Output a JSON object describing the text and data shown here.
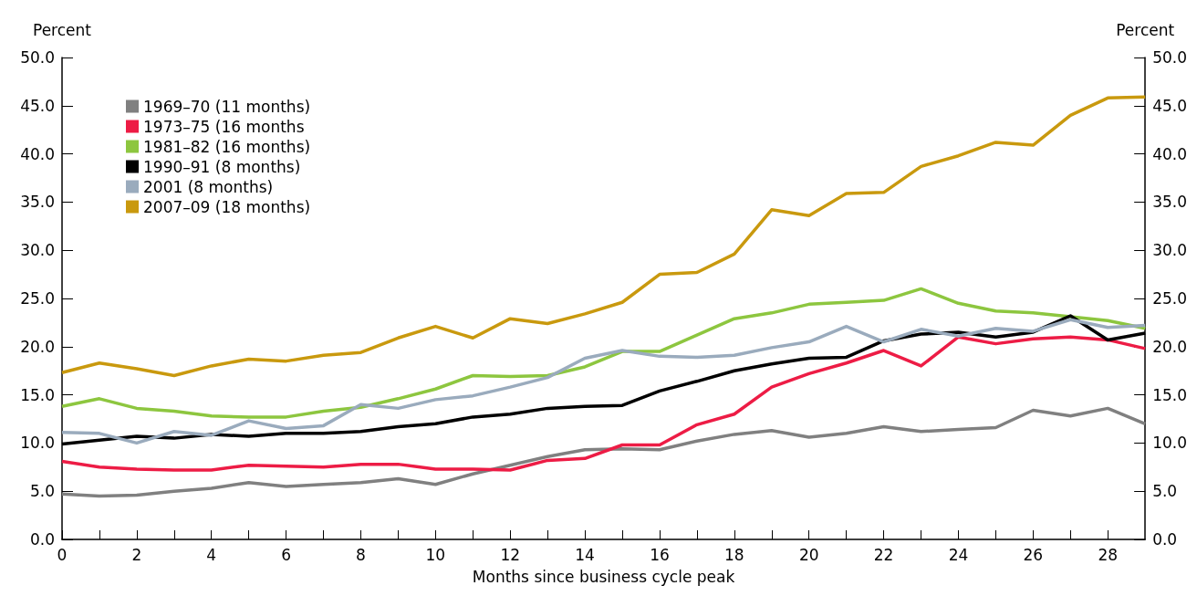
{
  "chart_data": {
    "type": "line",
    "xlabel": "Months since business cycle peak",
    "ylabel": "Percent",
    "y2label": "Percent",
    "x": [
      0,
      1,
      2,
      3,
      4,
      5,
      6,
      7,
      8,
      9,
      10,
      11,
      12,
      13,
      14,
      15,
      16,
      17,
      18,
      19,
      20,
      21,
      22,
      23,
      24,
      25,
      26,
      27,
      28,
      29
    ],
    "series": [
      {
        "name": "1969–70 (11 months)",
        "color": "#808080",
        "values": [
          4.7,
          4.5,
          4.6,
          5.0,
          5.3,
          5.9,
          5.5,
          5.7,
          5.9,
          6.3,
          5.7,
          6.8,
          7.7,
          8.6,
          9.3,
          9.4,
          9.3,
          10.2,
          10.9,
          11.3,
          10.6,
          11.0,
          11.7,
          11.2,
          11.4,
          11.6,
          13.4,
          12.8,
          13.6,
          12.0
        ]
      },
      {
        "name": "1973–75 (16 months",
        "color": "#ed1c45",
        "values": [
          8.1,
          7.5,
          7.3,
          7.2,
          7.2,
          7.7,
          7.6,
          7.5,
          7.8,
          7.8,
          7.3,
          7.3,
          7.2,
          8.2,
          8.4,
          9.8,
          9.8,
          11.9,
          13.0,
          15.8,
          17.2,
          18.3,
          19.6,
          18.0,
          21.0,
          20.3,
          20.8,
          21.0,
          20.7,
          19.8
        ]
      },
      {
        "name": "1981–82 (16 months)",
        "color": "#8dc63f",
        "values": [
          13.8,
          14.6,
          13.6,
          13.3,
          12.8,
          12.7,
          12.7,
          13.3,
          13.7,
          14.6,
          15.6,
          17.0,
          16.9,
          17.0,
          17.9,
          19.5,
          19.5,
          21.2,
          22.9,
          23.5,
          24.4,
          24.6,
          24.8,
          26.0,
          24.5,
          23.7,
          23.5,
          23.1,
          22.7,
          21.9
        ]
      },
      {
        "name": "1990–91 (8 months)",
        "color": "#000000",
        "values": [
          9.9,
          10.3,
          10.7,
          10.5,
          10.9,
          10.7,
          11.0,
          11.0,
          11.2,
          11.7,
          12.0,
          12.7,
          13.0,
          13.6,
          13.8,
          13.9,
          15.4,
          16.4,
          17.5,
          18.2,
          18.8,
          18.9,
          20.6,
          21.3,
          21.5,
          21.0,
          21.5,
          23.2,
          20.7,
          21.4
        ]
      },
      {
        "name": "2001 (8 months)",
        "color": "#9aabbd",
        "values": [
          11.1,
          11.0,
          10.0,
          11.2,
          10.8,
          12.3,
          11.5,
          11.8,
          14.0,
          13.6,
          14.5,
          14.9,
          15.8,
          16.8,
          18.8,
          19.6,
          19.0,
          18.9,
          19.1,
          19.9,
          20.5,
          22.1,
          20.5,
          21.8,
          21.1,
          21.9,
          21.6,
          22.8,
          22.0,
          22.2
        ]
      },
      {
        "name": "2007–09 (18 months)",
        "color": "#c9990e",
        "values": [
          17.3,
          18.3,
          17.7,
          17.0,
          18.0,
          18.7,
          18.5,
          19.1,
          19.4,
          20.9,
          22.1,
          20.9,
          22.9,
          22.4,
          23.4,
          24.6,
          27.5,
          27.7,
          29.6,
          34.2,
          33.6,
          35.9,
          36.0,
          38.7,
          39.8,
          41.2,
          40.9,
          44.0,
          45.8,
          45.9
        ]
      }
    ],
    "xlim": [
      0,
      29
    ],
    "xticks": [
      0,
      {
        "value": 1,
        "label": null
      },
      2,
      {
        "value": 3,
        "label": null
      },
      4,
      {
        "value": 5,
        "label": null
      },
      6,
      {
        "value": 7,
        "label": null
      },
      8,
      {
        "value": 9,
        "label": null
      },
      10,
      {
        "value": 11,
        "label": null
      },
      12,
      {
        "value": 13,
        "label": null
      },
      14,
      {
        "value": 15,
        "label": null
      },
      16,
      {
        "value": 17,
        "label": null
      },
      18,
      {
        "value": 19,
        "label": null
      },
      20,
      {
        "value": 21,
        "label": null
      },
      22,
      {
        "value": 23,
        "label": null
      },
      24,
      {
        "value": 25,
        "label": null
      },
      26,
      {
        "value": 27,
        "label": null
      },
      28
    ],
    "ylim": [
      0,
      50
    ],
    "yticks": [
      {
        "value": 0,
        "label": "0.0"
      },
      {
        "value": 5,
        "label": "5.0"
      },
      {
        "value": 10,
        "label": "10.0"
      },
      {
        "value": 15,
        "label": "15.0"
      },
      {
        "value": 20,
        "label": "20.0"
      },
      {
        "value": 25,
        "label": "25.0"
      },
      {
        "value": 30,
        "label": "30.0"
      },
      {
        "value": 35,
        "label": "35.0"
      },
      {
        "value": 40,
        "label": "40.0"
      },
      {
        "value": 45,
        "label": "45.0"
      },
      {
        "value": 50,
        "label": "50.0"
      }
    ],
    "y2lim": [
      0,
      50
    ],
    "y2ticks": [
      {
        "value": 0,
        "label": "0.0"
      },
      {
        "value": 5,
        "label": "5.0"
      },
      {
        "value": 10,
        "label": "10.0"
      },
      {
        "value": 15,
        "label": "15.0"
      },
      {
        "value": 20,
        "label": "20.0"
      },
      {
        "value": 25,
        "label": "25.0"
      },
      {
        "value": 30,
        "label": "30.0"
      },
      {
        "value": 35,
        "label": "35.0"
      },
      {
        "value": 40,
        "label": "40.0"
      },
      {
        "value": 45,
        "label": "45.0"
      },
      {
        "value": 50,
        "label": "50.0"
      }
    ],
    "grid": false,
    "legend": "top left",
    "marker": "none",
    "line_style": "solid"
  }
}
